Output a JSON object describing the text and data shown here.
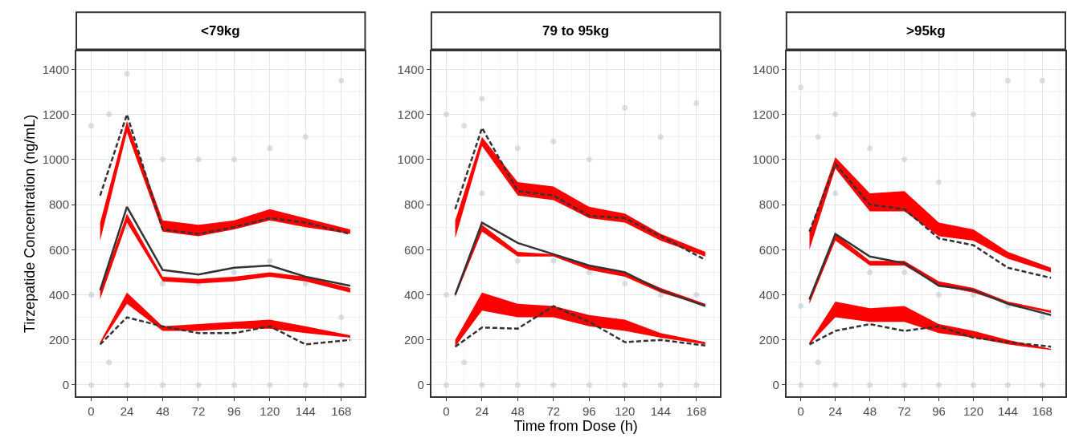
{
  "chart_data": [
    {
      "type": "line",
      "title": "<79kg",
      "ylabel": "Tirzepatide Concentration (ng/mL)",
      "xlim": [
        -10,
        184
      ],
      "xticks": [
        0,
        24,
        48,
        72,
        96,
        120,
        144,
        168
      ],
      "ylim": [
        -50,
        1480
      ],
      "yticks": [
        0,
        200,
        400,
        600,
        800,
        1000,
        1200,
        1400
      ],
      "grid": true,
      "series": [
        {
          "type": "scatter",
          "color": "#a8bbd0",
          "marker": "circle",
          "x": [
            0,
            0,
            0,
            12,
            12,
            24,
            24,
            24,
            48,
            48,
            48,
            72,
            72,
            72,
            96,
            96,
            96,
            120,
            120,
            120,
            144,
            144,
            144,
            168,
            168,
            168
          ],
          "values": [
            0,
            400,
            1150,
            100,
            1200,
            0,
            700,
            1380,
            0,
            450,
            1000,
            0,
            450,
            1000,
            0,
            500,
            1000,
            0,
            550,
            1050,
            0,
            450,
            1100,
            0,
            300,
            1350
          ]
        },
        {
          "color": "#ff0000",
          "x": [
            6,
            24,
            48,
            72,
            96,
            120,
            144,
            174
          ],
          "values": [
            null,
            null,
            null,
            null,
            null,
            null,
            null,
            null
          ],
          "lower": [
            640,
            1120,
            680,
            660,
            690,
            730,
            700,
            670
          ],
          "upper": [
            720,
            1170,
            730,
            710,
            730,
            780,
            740,
            690
          ]
        },
        {
          "color": "#fe0000",
          "x": [
            6,
            24,
            48,
            72,
            96,
            120,
            144,
            174
          ],
          "values": [
            null,
            null,
            null,
            null,
            null,
            null,
            null,
            null
          ],
          "lower": [
            380,
            720,
            460,
            450,
            460,
            480,
            460,
            410
          ],
          "upper": [
            420,
            760,
            480,
            470,
            480,
            500,
            480,
            430
          ]
        },
        {
          "color": "#fd0000",
          "x": [
            6,
            24,
            48,
            72,
            96,
            120,
            144,
            174
          ],
          "values": [
            null,
            null,
            null,
            null,
            null,
            null,
            null,
            null
          ],
          "lower": [
            180,
            360,
            240,
            240,
            250,
            250,
            230,
            210
          ],
          "upper": [
            190,
            410,
            260,
            270,
            280,
            290,
            260,
            220
          ]
        },
        {
          "type": "line",
          "color": "#333333",
          "line_style": "dashed",
          "x": [
            6,
            24,
            48,
            72,
            96,
            120,
            144,
            174
          ],
          "values": [
            840,
            1200,
            690,
            670,
            700,
            740,
            720,
            670
          ]
        },
        {
          "type": "line",
          "color": "#333333",
          "line_style": "solid",
          "x": [
            6,
            24,
            48,
            72,
            96,
            120,
            144,
            174
          ],
          "values": [
            420,
            790,
            510,
            490,
            520,
            530,
            480,
            440
          ]
        },
        {
          "type": "line",
          "color": "#333333",
          "line_style": "dashed",
          "x": [
            6,
            24,
            48,
            72,
            96,
            120,
            144,
            174
          ],
          "values": [
            180,
            300,
            260,
            230,
            230,
            260,
            180,
            200
          ]
        }
      ]
    },
    {
      "type": "line",
      "title": "79 to 95kg",
      "xlabel": "Time from Dose (h)",
      "xlim": [
        -10,
        184
      ],
      "xticks": [
        0,
        24,
        48,
        72,
        96,
        120,
        144,
        168
      ],
      "ylim": [
        -50,
        1480
      ],
      "yticks": [
        0,
        200,
        400,
        600,
        800,
        1000,
        1200,
        1400
      ],
      "grid": true,
      "series": [
        {
          "type": "scatter",
          "color": "#a8bbd0",
          "marker": "circle",
          "x": [
            0,
            0,
            0,
            12,
            12,
            24,
            24,
            24,
            48,
            48,
            48,
            72,
            72,
            72,
            96,
            96,
            96,
            120,
            120,
            120,
            144,
            144,
            144,
            168,
            168,
            168
          ],
          "values": [
            0,
            400,
            1200,
            100,
            1150,
            0,
            850,
            1270,
            0,
            550,
            1050,
            0,
            550,
            1080,
            0,
            500,
            1000,
            0,
            450,
            1230,
            0,
            400,
            1100,
            0,
            400,
            1250
          ]
        },
        {
          "color": "#ff0000",
          "x": [
            6,
            24,
            48,
            72,
            96,
            120,
            144,
            174
          ],
          "values": [
            null,
            null,
            null,
            null,
            null,
            null,
            null,
            null
          ],
          "lower": [
            650,
            1060,
            840,
            820,
            740,
            720,
            640,
            570
          ],
          "upper": [
            730,
            1100,
            900,
            880,
            790,
            760,
            670,
            590
          ]
        },
        {
          "color": "#fe0000",
          "x": [
            6,
            24,
            48,
            72,
            96,
            120,
            144,
            174
          ],
          "values": [
            null,
            null,
            null,
            null,
            null,
            null,
            null,
            null
          ],
          "lower": [
            390,
            680,
            570,
            570,
            510,
            480,
            410,
            350
          ],
          "upper": [
            400,
            710,
            590,
            580,
            530,
            500,
            430,
            360
          ]
        },
        {
          "color": "#fd0000",
          "x": [
            6,
            24,
            48,
            72,
            96,
            120,
            144,
            174
          ],
          "values": [
            null,
            null,
            null,
            null,
            null,
            null,
            null,
            null
          ],
          "lower": [
            170,
            330,
            300,
            300,
            260,
            240,
            210,
            180
          ],
          "upper": [
            200,
            410,
            360,
            350,
            310,
            290,
            230,
            190
          ]
        },
        {
          "type": "line",
          "color": "#333333",
          "line_style": "dashed",
          "x": [
            6,
            24,
            48,
            72,
            96,
            120,
            144,
            174
          ],
          "values": [
            780,
            1140,
            860,
            840,
            750,
            740,
            660,
            555
          ]
        },
        {
          "type": "line",
          "color": "#333333",
          "line_style": "solid",
          "x": [
            6,
            24,
            48,
            72,
            96,
            120,
            144,
            174
          ],
          "values": [
            400,
            720,
            630,
            580,
            530,
            500,
            420,
            350
          ]
        },
        {
          "type": "line",
          "color": "#333333",
          "line_style": "dashed",
          "x": [
            6,
            24,
            48,
            72,
            96,
            120,
            144,
            174
          ],
          "values": [
            170,
            255,
            250,
            350,
            280,
            190,
            200,
            175
          ]
        }
      ]
    },
    {
      "type": "line",
      "title": ">95kg",
      "xlim": [
        -10,
        184
      ],
      "xticks": [
        0,
        24,
        48,
        72,
        96,
        120,
        144,
        168
      ],
      "ylim": [
        -50,
        1480
      ],
      "yticks": [
        0,
        200,
        400,
        600,
        800,
        1000,
        1200,
        1400
      ],
      "grid": true,
      "series": [
        {
          "type": "scatter",
          "color": "#a8bbd0",
          "marker": "circle",
          "x": [
            0,
            0,
            0,
            12,
            12,
            24,
            24,
            24,
            48,
            48,
            48,
            72,
            72,
            72,
            96,
            96,
            96,
            120,
            120,
            120,
            144,
            144,
            144,
            168,
            168,
            168
          ],
          "values": [
            0,
            350,
            1320,
            100,
            1100,
            0,
            850,
            1200,
            0,
            500,
            1050,
            0,
            500,
            1000,
            0,
            400,
            900,
            0,
            400,
            1200,
            0,
            350,
            1350,
            0,
            300,
            1350
          ]
        },
        {
          "color": "#ff0000",
          "x": [
            6,
            24,
            48,
            72,
            96,
            120,
            144,
            174
          ],
          "values": [
            null,
            null,
            null,
            null,
            null,
            null,
            null,
            null
          ],
          "lower": [
            600,
            960,
            770,
            770,
            660,
            640,
            560,
            500
          ],
          "upper": [
            680,
            1010,
            850,
            860,
            720,
            690,
            590,
            520
          ]
        },
        {
          "color": "#fe0000",
          "x": [
            6,
            24,
            48,
            72,
            96,
            120,
            144,
            174
          ],
          "values": [
            null,
            null,
            null,
            null,
            null,
            null,
            null,
            null
          ],
          "lower": [
            360,
            640,
            530,
            530,
            440,
            410,
            360,
            320
          ],
          "upper": [
            390,
            670,
            550,
            550,
            460,
            430,
            370,
            330
          ]
        },
        {
          "color": "#fd0000",
          "x": [
            6,
            24,
            48,
            72,
            96,
            120,
            144,
            174
          ],
          "values": [
            null,
            null,
            null,
            null,
            null,
            null,
            null,
            null
          ],
          "lower": [
            180,
            300,
            280,
            280,
            230,
            210,
            180,
            155
          ],
          "upper": [
            190,
            370,
            340,
            350,
            270,
            240,
            200,
            160
          ]
        },
        {
          "type": "line",
          "color": "#333333",
          "line_style": "dashed",
          "x": [
            6,
            24,
            48,
            72,
            96,
            120,
            144,
            174
          ],
          "values": [
            680,
            980,
            800,
            780,
            650,
            620,
            520,
            475
          ]
        },
        {
          "type": "line",
          "color": "#333333",
          "line_style": "solid",
          "x": [
            6,
            24,
            48,
            72,
            96,
            120,
            144,
            174
          ],
          "values": [
            380,
            670,
            570,
            540,
            440,
            420,
            360,
            310
          ]
        },
        {
          "type": "line",
          "color": "#333333",
          "line_style": "dashed",
          "x": [
            6,
            24,
            48,
            72,
            96,
            120,
            144,
            174
          ],
          "values": [
            180,
            240,
            270,
            240,
            260,
            210,
            190,
            170
          ]
        }
      ]
    }
  ]
}
